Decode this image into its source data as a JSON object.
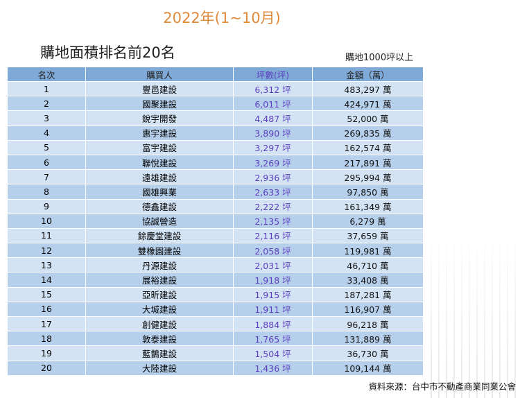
{
  "title": "2022年(1~10月)",
  "subtitle": "購地面積排名前20名",
  "note": "購地1000坪以上",
  "colors": {
    "title": "#e08a3c",
    "header_bg": "#7fa9d6",
    "row_odd": "#d3e3f4",
    "row_even": "#b6d0ec",
    "area_text": "#5b3fbf"
  },
  "table": {
    "headers": [
      "名次",
      "購買人",
      "坪數(坪)",
      "金額（萬）"
    ],
    "rows": [
      {
        "rank": "1",
        "buyer": "豐邑建設",
        "area": "6,312 坪",
        "amount": "483,297 萬"
      },
      {
        "rank": "2",
        "buyer": "國聚建設",
        "area": "6,011 坪",
        "amount": "424,971 萬"
      },
      {
        "rank": "3",
        "buyer": "銳宇開發",
        "area": "4,487 坪",
        "amount": "52,000 萬"
      },
      {
        "rank": "4",
        "buyer": "惠宇建設",
        "area": "3,890 坪",
        "amount": "269,835 萬"
      },
      {
        "rank": "5",
        "buyer": "富宇建設",
        "area": "3,297 坪",
        "amount": "162,574 萬"
      },
      {
        "rank": "6",
        "buyer": "聯悅建設",
        "area": "3,269 坪",
        "amount": "217,891 萬"
      },
      {
        "rank": "7",
        "buyer": "遠雄建設",
        "area": "2,936 坪",
        "amount": "295,994 萬"
      },
      {
        "rank": "8",
        "buyer": "國雄興業",
        "area": "2,633 坪",
        "amount": "97,850 萬"
      },
      {
        "rank": "9",
        "buyer": "德鑫建設",
        "area": "2,222 坪",
        "amount": "161,349 萬"
      },
      {
        "rank": "10",
        "buyer": "協誠營造",
        "area": "2,135 坪",
        "amount": "6,279 萬"
      },
      {
        "rank": "11",
        "buyer": "餘慶堂建設",
        "area": "2,116 坪",
        "amount": "37,659 萬"
      },
      {
        "rank": "12",
        "buyer": "雙橡園建設",
        "area": "2,058 坪",
        "amount": "119,981 萬"
      },
      {
        "rank": "13",
        "buyer": "丹源建設",
        "area": "2,031 坪",
        "amount": "46,710 萬"
      },
      {
        "rank": "14",
        "buyer": "展裕建設",
        "area": "1,918 坪",
        "amount": "33,408 萬"
      },
      {
        "rank": "15",
        "buyer": "亞昕建設",
        "area": "1,915 坪",
        "amount": "187,281 萬"
      },
      {
        "rank": "16",
        "buyer": "大城建設",
        "area": "1,911 坪",
        "amount": "116,907 萬"
      },
      {
        "rank": "17",
        "buyer": "創健建設",
        "area": "1,884 坪",
        "amount": "96,218 萬"
      },
      {
        "rank": "18",
        "buyer": "敦泰建設",
        "area": "1,765 坪",
        "amount": "131,889 萬"
      },
      {
        "rank": "19",
        "buyer": "藍鵲建設",
        "area": "1,504 坪",
        "amount": "36,730 萬"
      },
      {
        "rank": "20",
        "buyer": "大陸建設",
        "area": "1,436 坪",
        "amount": "109,144 萬"
      }
    ]
  },
  "source": "資料來源：台中市不動產商業同業公會"
}
